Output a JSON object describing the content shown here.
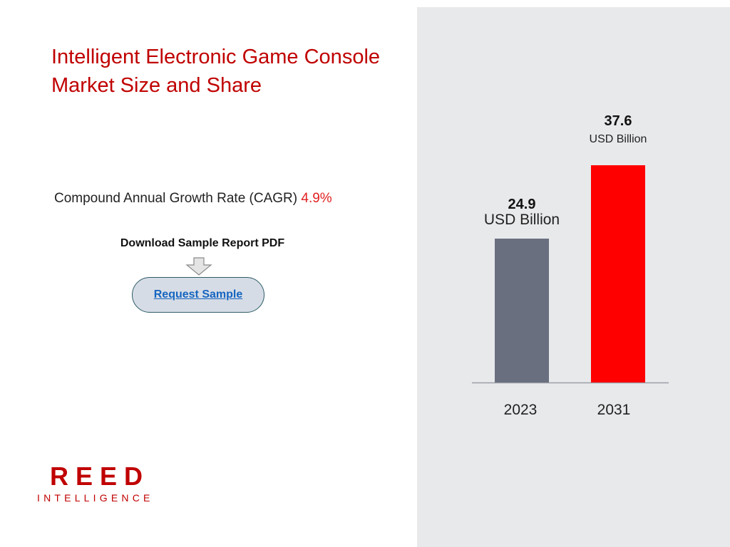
{
  "title": "Intelligent Electronic Game Console Market Size and Share",
  "cagr": {
    "label": "Compound Annual Growth Rate (CAGR)",
    "value": "4.9%"
  },
  "download": {
    "label": "Download Sample Report PDF",
    "button_label": "Request Sample"
  },
  "logo": {
    "primary": "REED",
    "secondary": "INTELLIGENCE"
  },
  "colors": {
    "accent": "#c00000",
    "bar_2023": "#696f7e",
    "bar_2031": "#ff0000",
    "panel": "#e8e9eb"
  },
  "chart_data": {
    "type": "bar",
    "categories": [
      "2023",
      "2031"
    ],
    "values": [
      24.9,
      37.6
    ],
    "value_labels": [
      "24.9",
      "37.6"
    ],
    "unit": "USD Billion",
    "colors": [
      "#696f7e",
      "#ff0000"
    ],
    "ylim": [
      0,
      37.6
    ],
    "grid": false,
    "legend": "none"
  }
}
